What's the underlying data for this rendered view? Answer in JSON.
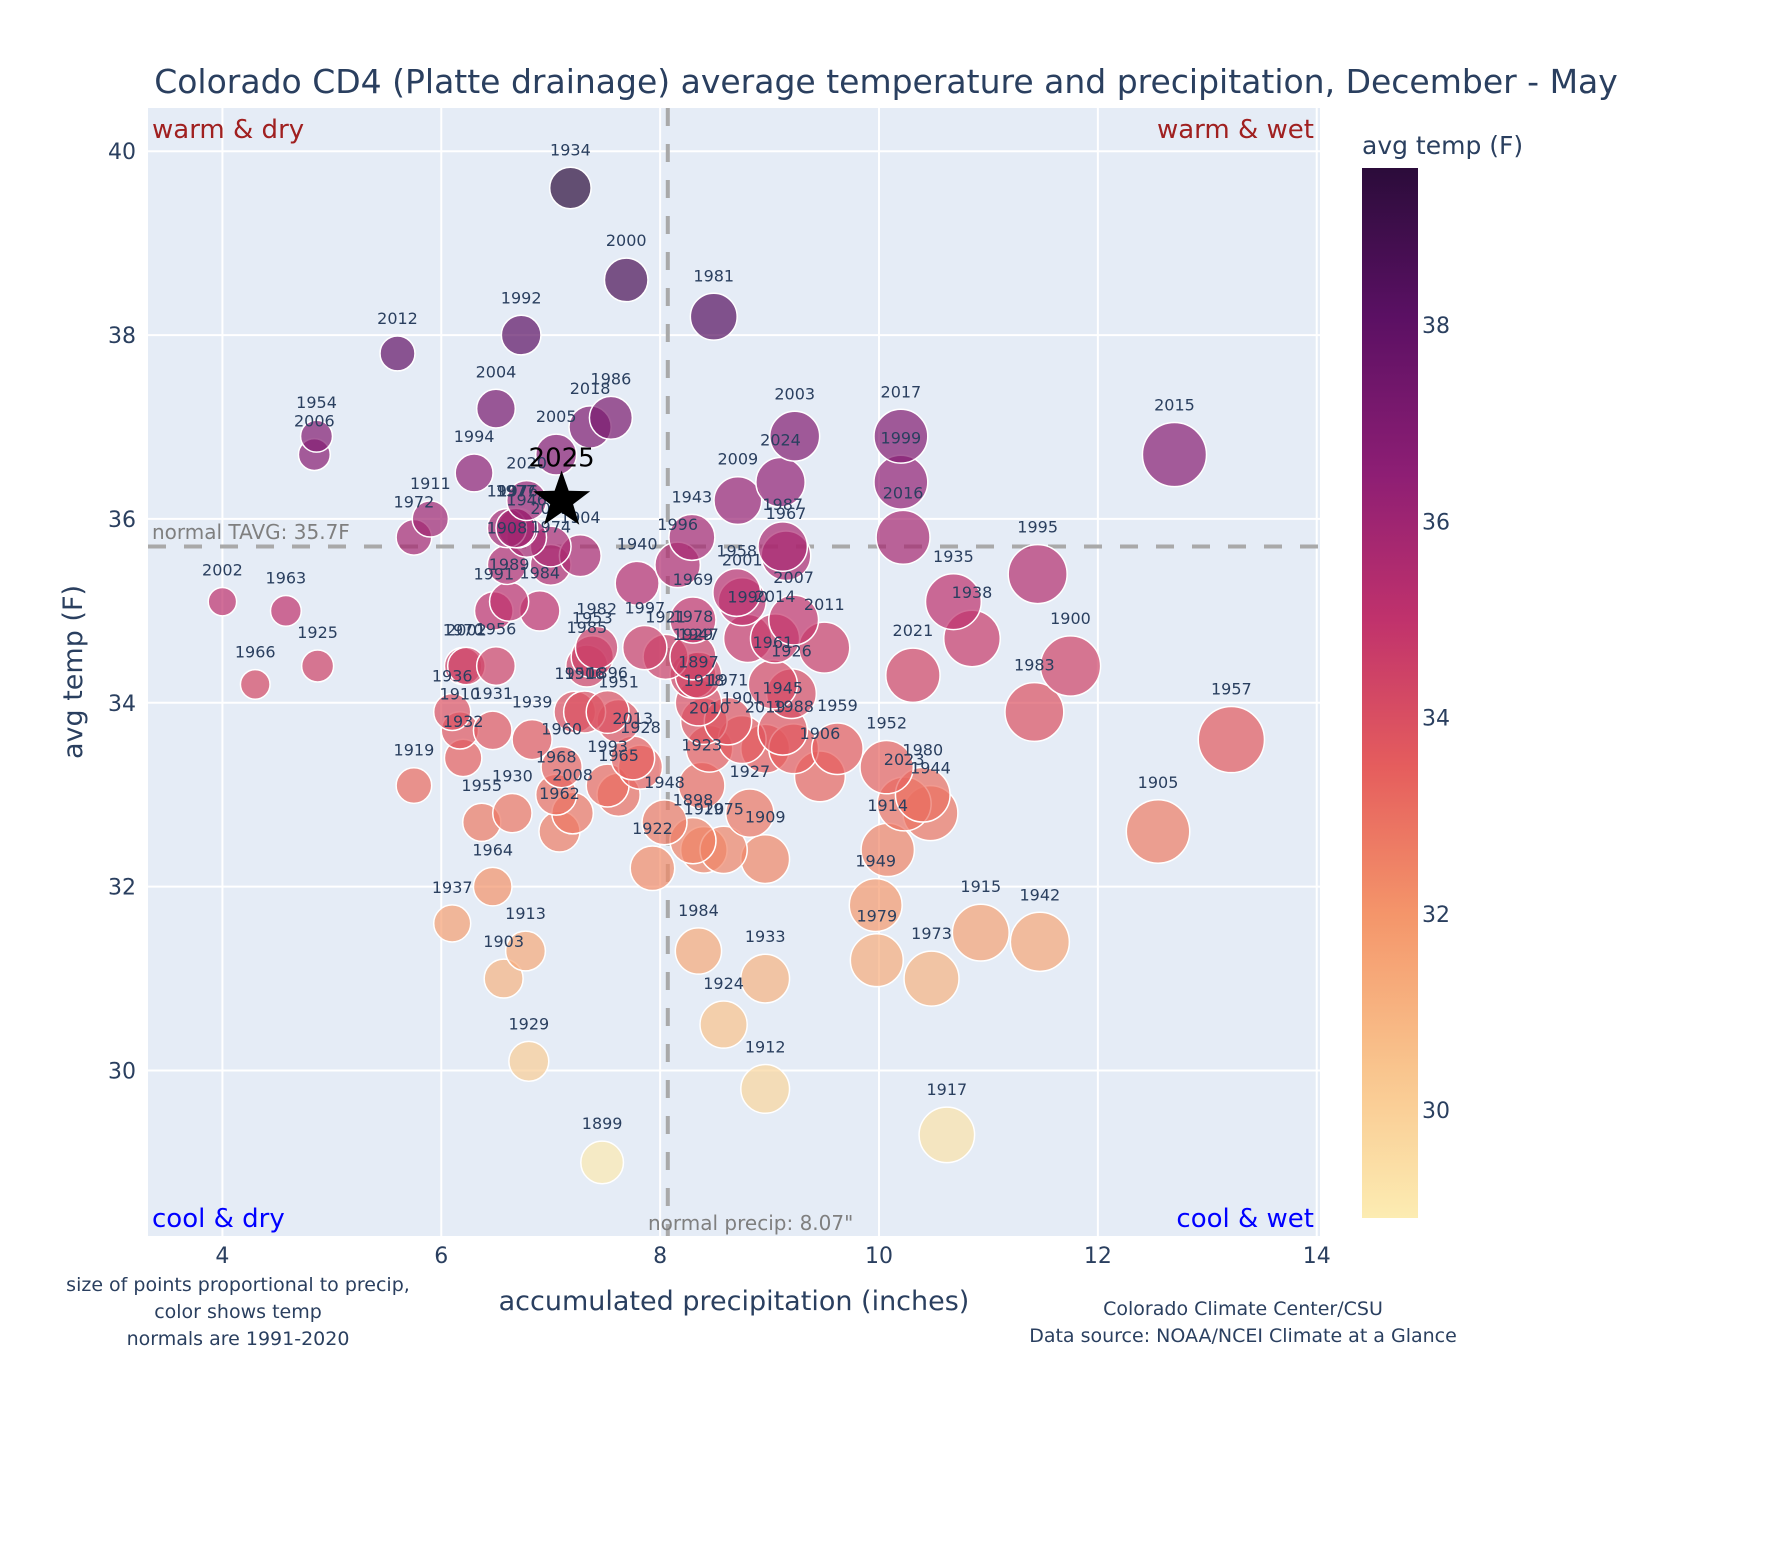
{
  "chart_data": {
    "type": "scatter",
    "title": "Colorado CD4 (Platte drainage) average temperature and precipitation, December - May",
    "xlabel": "accumulated precipitation (inches)",
    "ylabel": "avg temp (F)",
    "xlim": [
      3.32,
      14.03
    ],
    "ylim": [
      28.2,
      40.47
    ],
    "xticks": [
      4,
      6,
      8,
      10,
      12,
      14
    ],
    "yticks": [
      30,
      32,
      34,
      36,
      38,
      40
    ],
    "grid": true,
    "colorbar": {
      "title": "avg temp (F)",
      "range": [
        28.9,
        39.6
      ],
      "ticks": [
        30,
        32,
        34,
        36,
        38
      ],
      "colorscale": [
        "#fcecb2",
        "#f9c58e",
        "#f4956a",
        "#e55d5d",
        "#c0326c",
        "#8d1e74",
        "#5a1063",
        "#2b0c3a"
      ]
    },
    "normals": {
      "temp": 35.7,
      "temp_label": "normal TAVG: 35.7F",
      "precip": 8.07,
      "precip_label": "normal precip: 8.07\""
    },
    "quadrant_labels": {
      "top_left": "warm & dry",
      "top_right": "warm & wet",
      "bottom_left": "cool & dry",
      "bottom_right": "cool & wet"
    },
    "quadrant_colors": {
      "warm": "#a02020",
      "cool": "#0000ff"
    },
    "highlight": {
      "year": "2025",
      "x": 7.1,
      "y": 36.2,
      "marker": "star"
    },
    "notes": {
      "left": [
        "size of points proportional to precip,",
        "color shows temp",
        "normals are 1991-2020"
      ],
      "right": [
        "Colorado Climate Center/CSU",
        "Data source: NOAA/NCEI Climate at a Glance"
      ]
    },
    "points": [
      {
        "year": "1934",
        "x": 7.18,
        "y": 39.6
      },
      {
        "year": "2000",
        "x": 7.69,
        "y": 38.6
      },
      {
        "year": "1981",
        "x": 8.49,
        "y": 38.2
      },
      {
        "year": "1992",
        "x": 6.73,
        "y": 38.0
      },
      {
        "year": "2012",
        "x": 5.6,
        "y": 37.8
      },
      {
        "year": "2004",
        "x": 6.5,
        "y": 37.2
      },
      {
        "year": "1986",
        "x": 7.55,
        "y": 37.1
      },
      {
        "year": "2018",
        "x": 7.36,
        "y": 37.0
      },
      {
        "year": "1954",
        "x": 4.86,
        "y": 36.9
      },
      {
        "year": "2006",
        "x": 4.84,
        "y": 36.7
      },
      {
        "year": "2005",
        "x": 7.05,
        "y": 36.7
      },
      {
        "year": "2003",
        "x": 9.23,
        "y": 36.9
      },
      {
        "year": "2017",
        "x": 10.2,
        "y": 36.9
      },
      {
        "year": "2015",
        "x": 12.7,
        "y": 36.7
      },
      {
        "year": "1994",
        "x": 6.3,
        "y": 36.5
      },
      {
        "year": "2024",
        "x": 9.1,
        "y": 36.4
      },
      {
        "year": "1999",
        "x": 10.2,
        "y": 36.4
      },
      {
        "year": "2020",
        "x": 6.78,
        "y": 36.2
      },
      {
        "year": "2009",
        "x": 8.71,
        "y": 36.2
      },
      {
        "year": "1911",
        "x": 5.9,
        "y": 36.0
      },
      {
        "year": "1976",
        "x": 6.7,
        "y": 35.9
      },
      {
        "year": "1997b",
        "x": 6.6,
        "y": 35.9
      },
      {
        "year": "1972",
        "x": 5.75,
        "y": 35.8
      },
      {
        "year": "1943",
        "x": 8.29,
        "y": 35.8
      },
      {
        "year": "2016",
        "x": 10.22,
        "y": 35.8
      },
      {
        "year": "1987",
        "x": 9.12,
        "y": 35.7
      },
      {
        "year": "1967",
        "x": 9.15,
        "y": 35.6
      },
      {
        "year": "1977",
        "x": 6.68,
        "y": 35.9
      },
      {
        "year": "1946",
        "x": 6.78,
        "y": 35.8
      },
      {
        "year": "2022",
        "x": 7.0,
        "y": 35.7
      },
      {
        "year": "1904",
        "x": 7.27,
        "y": 35.6
      },
      {
        "year": "1996",
        "x": 8.16,
        "y": 35.5
      },
      {
        "year": "1940",
        "x": 7.79,
        "y": 35.3
      },
      {
        "year": "1908",
        "x": 6.6,
        "y": 35.5
      },
      {
        "year": "1974",
        "x": 7.0,
        "y": 35.5
      },
      {
        "year": "1989",
        "x": 6.62,
        "y": 35.1
      },
      {
        "year": "1991",
        "x": 6.48,
        "y": 35.0
      },
      {
        "year": "1984b",
        "x": 6.9,
        "y": 35.0
      },
      {
        "year": "1958",
        "x": 8.7,
        "y": 35.2
      },
      {
        "year": "2001",
        "x": 8.75,
        "y": 35.1
      },
      {
        "year": "1969",
        "x": 8.3,
        "y": 34.9
      },
      {
        "year": "1990",
        "x": 8.8,
        "y": 34.7
      },
      {
        "year": "2007",
        "x": 9.22,
        "y": 34.9
      },
      {
        "year": "1995",
        "x": 11.45,
        "y": 35.4
      },
      {
        "year": "1935",
        "x": 10.68,
        "y": 35.1
      },
      {
        "year": "1938",
        "x": 10.85,
        "y": 34.7
      },
      {
        "year": "2011",
        "x": 9.5,
        "y": 34.6
      },
      {
        "year": "2014",
        "x": 9.05,
        "y": 34.7
      },
      {
        "year": "1982",
        "x": 7.42,
        "y": 34.6
      },
      {
        "year": "1953",
        "x": 7.38,
        "y": 34.5
      },
      {
        "year": "1997",
        "x": 7.86,
        "y": 34.6
      },
      {
        "year": "1921",
        "x": 8.05,
        "y": 34.5
      },
      {
        "year": "1978",
        "x": 8.3,
        "y": 34.5
      },
      {
        "year": "1985",
        "x": 7.33,
        "y": 34.4
      },
      {
        "year": "1970",
        "x": 6.2,
        "y": 34.4
      },
      {
        "year": "2002b",
        "x": 6.23,
        "y": 34.4
      },
      {
        "year": "1956",
        "x": 6.5,
        "y": 34.4
      },
      {
        "year": "1929b",
        "x": 8.3,
        "y": 34.3
      },
      {
        "year": "1947",
        "x": 8.35,
        "y": 34.3
      },
      {
        "year": "1961",
        "x": 9.03,
        "y": 34.2
      },
      {
        "year": "1926",
        "x": 9.2,
        "y": 34.1
      },
      {
        "year": "2021",
        "x": 10.31,
        "y": 34.3
      },
      {
        "year": "1900",
        "x": 11.75,
        "y": 34.4
      },
      {
        "year": "2002",
        "x": 4.0,
        "y": 35.1
      },
      {
        "year": "1963",
        "x": 4.58,
        "y": 35.0
      },
      {
        "year": "1925",
        "x": 4.87,
        "y": 34.4
      },
      {
        "year": "1966",
        "x": 4.3,
        "y": 34.2
      },
      {
        "year": "1936",
        "x": 6.1,
        "y": 33.9
      },
      {
        "year": "1910",
        "x": 6.17,
        "y": 33.7
      },
      {
        "year": "1931",
        "x": 6.47,
        "y": 33.7
      },
      {
        "year": "1932",
        "x": 6.2,
        "y": 33.4
      },
      {
        "year": "1939",
        "x": 6.83,
        "y": 33.6
      },
      {
        "year": "1950",
        "x": 7.22,
        "y": 33.9
      },
      {
        "year": "1916",
        "x": 7.31,
        "y": 33.9
      },
      {
        "year": "1896",
        "x": 7.52,
        "y": 33.9
      },
      {
        "year": "1951",
        "x": 7.62,
        "y": 33.8
      },
      {
        "year": "1897",
        "x": 8.35,
        "y": 34.0
      },
      {
        "year": "1918",
        "x": 8.4,
        "y": 33.8
      },
      {
        "year": "1971",
        "x": 8.62,
        "y": 33.8
      },
      {
        "year": "1901",
        "x": 8.75,
        "y": 33.6
      },
      {
        "year": "2019",
        "x": 8.96,
        "y": 33.5
      },
      {
        "year": "1945",
        "x": 9.12,
        "y": 33.7
      },
      {
        "year": "1988",
        "x": 9.22,
        "y": 33.5
      },
      {
        "year": "1959",
        "x": 9.62,
        "y": 33.5
      },
      {
        "year": "1906",
        "x": 9.46,
        "y": 33.2
      },
      {
        "year": "1983",
        "x": 11.42,
        "y": 33.9
      },
      {
        "year": "1957",
        "x": 13.22,
        "y": 33.6
      },
      {
        "year": "1952",
        "x": 10.07,
        "y": 33.3
      },
      {
        "year": "2013",
        "x": 7.75,
        "y": 33.4
      },
      {
        "year": "1928",
        "x": 7.82,
        "y": 33.3
      },
      {
        "year": "2010",
        "x": 8.45,
        "y": 33.5
      },
      {
        "year": "1960",
        "x": 7.1,
        "y": 33.3
      },
      {
        "year": "1968",
        "x": 7.05,
        "y": 33.0
      },
      {
        "year": "1993",
        "x": 7.52,
        "y": 33.1
      },
      {
        "year": "1965",
        "x": 7.62,
        "y": 33.0
      },
      {
        "year": "2008",
        "x": 7.2,
        "y": 32.8
      },
      {
        "year": "1962",
        "x": 7.08,
        "y": 32.6
      },
      {
        "year": "1919",
        "x": 5.75,
        "y": 33.1
      },
      {
        "year": "1955",
        "x": 6.37,
        "y": 32.7
      },
      {
        "year": "1930",
        "x": 6.65,
        "y": 32.8
      },
      {
        "year": "1948",
        "x": 8.04,
        "y": 32.7
      },
      {
        "year": "1923",
        "x": 8.38,
        "y": 33.1
      },
      {
        "year": "1898",
        "x": 8.3,
        "y": 32.5
      },
      {
        "year": "1920",
        "x": 8.4,
        "y": 32.4
      },
      {
        "year": "1975",
        "x": 8.58,
        "y": 32.4
      },
      {
        "year": "1909",
        "x": 8.96,
        "y": 32.3
      },
      {
        "year": "1927",
        "x": 8.82,
        "y": 32.8
      },
      {
        "year": "2023",
        "x": 10.23,
        "y": 32.9
      },
      {
        "year": "1980",
        "x": 10.4,
        "y": 33.0
      },
      {
        "year": "1944",
        "x": 10.47,
        "y": 32.8
      },
      {
        "year": "1914",
        "x": 10.08,
        "y": 32.4
      },
      {
        "year": "1922",
        "x": 7.93,
        "y": 32.2
      },
      {
        "year": "1964",
        "x": 6.47,
        "y": 32.0
      },
      {
        "year": "1949",
        "x": 9.97,
        "y": 31.8
      },
      {
        "year": "1937",
        "x": 6.1,
        "y": 31.6
      },
      {
        "year": "1913",
        "x": 6.77,
        "y": 31.3
      },
      {
        "year": "1903",
        "x": 6.57,
        "y": 31.0
      },
      {
        "year": "1984",
        "x": 8.35,
        "y": 31.3
      },
      {
        "year": "1933",
        "x": 8.96,
        "y": 31.0
      },
      {
        "year": "1979",
        "x": 9.98,
        "y": 31.2
      },
      {
        "year": "1973",
        "x": 10.48,
        "y": 31.0
      },
      {
        "year": "1915",
        "x": 10.93,
        "y": 31.5
      },
      {
        "year": "1942",
        "x": 11.47,
        "y": 31.4
      },
      {
        "year": "1905",
        "x": 12.55,
        "y": 32.6
      },
      {
        "year": "1924",
        "x": 8.58,
        "y": 30.5
      },
      {
        "year": "1929",
        "x": 6.8,
        "y": 30.1
      },
      {
        "year": "1912",
        "x": 8.96,
        "y": 29.8
      },
      {
        "year": "1917",
        "x": 10.62,
        "y": 29.3
      },
      {
        "year": "1899",
        "x": 7.47,
        "y": 29.0
      }
    ]
  }
}
